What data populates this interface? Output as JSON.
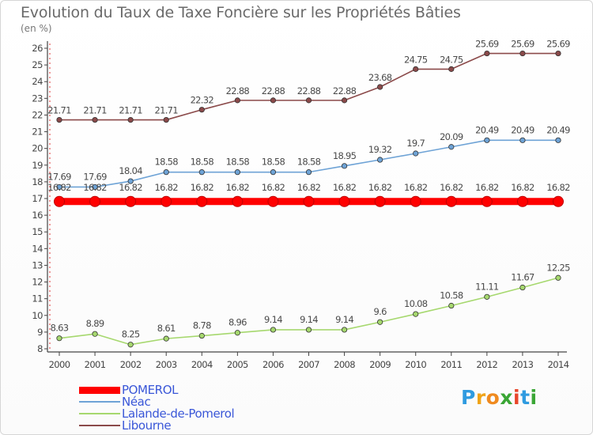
{
  "title": "Evolution du Taux de Taxe Foncière sur les Propriétés Bâties",
  "unit_label": "(en %)",
  "logo": {
    "letters": [
      {
        "char": "P",
        "color": "#2f9be0"
      },
      {
        "char": "r",
        "color": "#f0a419"
      },
      {
        "char": "o",
        "color": "#ef8a1f"
      },
      {
        "char": "x",
        "color": "#3aa635"
      },
      {
        "char": "i",
        "color": "#e8462a"
      },
      {
        "char": "t",
        "color": "#2f9be0"
      },
      {
        "char": "i",
        "color": "#3aa635"
      }
    ]
  },
  "chart_data": {
    "type": "line",
    "xlabel": "",
    "ylabel": "",
    "x": [
      "2000",
      "2001",
      "2002",
      "2003",
      "2004",
      "2005",
      "2006",
      "2007",
      "2008",
      "2009",
      "2010",
      "2011",
      "2012",
      "2013",
      "2014"
    ],
    "ylim": [
      8,
      26
    ],
    "yticks": [
      "8",
      "9",
      "10",
      "11",
      "12",
      "13",
      "14",
      "15",
      "16",
      "17",
      "18",
      "19",
      "20",
      "21",
      "22",
      "23",
      "24",
      "25",
      "26"
    ],
    "grid": false,
    "legend_position": "bottom-left",
    "series": [
      {
        "name": "POMEROL",
        "color": "#ff0000",
        "values": [
          16.82,
          16.82,
          16.82,
          16.82,
          16.82,
          16.82,
          16.82,
          16.82,
          16.82,
          16.82,
          16.82,
          16.82,
          16.82,
          16.82,
          16.82
        ],
        "labels": [
          "16.82",
          "16.82",
          "16.82",
          "16.82",
          "16.82",
          "16.82",
          "16.82",
          "16.82",
          "16.82",
          "16.82",
          "16.82",
          "16.82",
          "16.82",
          "16.82",
          "16.82"
        ]
      },
      {
        "name": "Néac",
        "color": "#6ea3d6",
        "values": [
          17.69,
          17.69,
          18.04,
          18.58,
          18.58,
          18.58,
          18.58,
          18.58,
          18.95,
          19.32,
          19.7,
          20.09,
          20.49,
          20.49,
          20.49
        ],
        "labels": [
          "17.69",
          "17.69",
          "18.04",
          "18.58",
          "18.58",
          "18.58",
          "18.58",
          "18.58",
          "18.95",
          "19.32",
          "19.7",
          "20.09",
          "20.49",
          "20.49",
          "20.49"
        ]
      },
      {
        "name": "Lalande-de-Pomerol",
        "color": "#a6d86e",
        "values": [
          8.63,
          8.89,
          8.25,
          8.61,
          8.78,
          8.96,
          9.14,
          9.14,
          9.14,
          9.6,
          10.08,
          10.58,
          11.11,
          11.67,
          12.25
        ],
        "labels": [
          "8.63",
          "8.89",
          "8.25",
          "8.61",
          "8.78",
          "8.96",
          "9.14",
          "9.14",
          "9.14",
          "9.6",
          "10.08",
          "10.58",
          "11.11",
          "11.67",
          "12.25"
        ]
      },
      {
        "name": "Libourne",
        "color": "#8b4a4a",
        "values": [
          21.71,
          21.71,
          21.71,
          21.71,
          22.32,
          22.88,
          22.88,
          22.88,
          22.88,
          23.68,
          24.75,
          24.75,
          25.69,
          25.69,
          25.69
        ],
        "labels": [
          "21.71",
          "21.71",
          "21.71",
          "21.71",
          "22.32",
          "22.88",
          "22.88",
          "22.88",
          "22.88",
          "23.68",
          "24.75",
          "24.75",
          "25.69",
          "25.69",
          "25.69"
        ]
      }
    ]
  }
}
